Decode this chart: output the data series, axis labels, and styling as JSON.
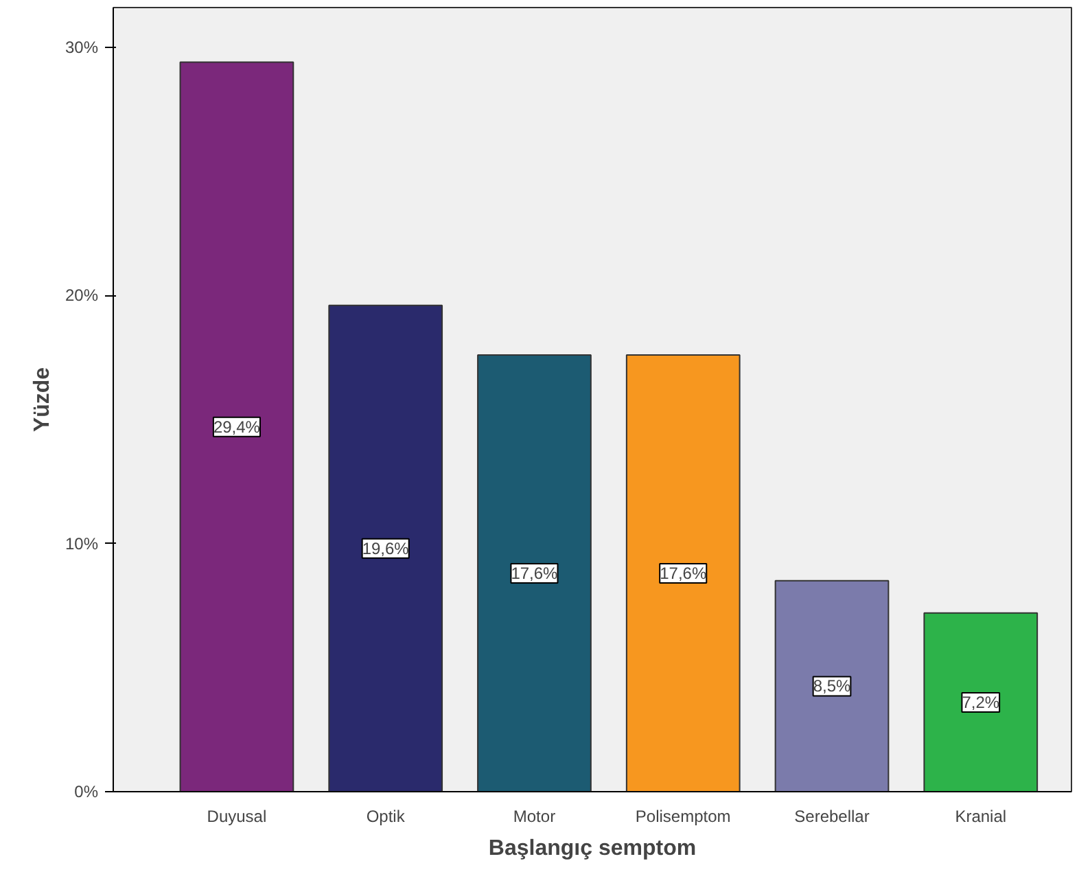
{
  "chart_data": {
    "type": "bar",
    "xlabel": "Başlangıç semptom",
    "ylabel": "Yüzde",
    "categories": [
      "Duyusal",
      "Optik",
      "Motor",
      "Polisemptom",
      "Serebellar",
      "Kranial"
    ],
    "values": [
      29.4,
      19.6,
      17.6,
      17.6,
      8.5,
      7.2
    ],
    "colors": [
      "#7b287b",
      "#2a2a6c",
      "#1c5b72",
      "#f7971f",
      "#7b7bab",
      "#2db34a"
    ],
    "value_labels": [
      "29,4%",
      "19,6%",
      "17,6%",
      "17,6%",
      "8,5%",
      "7,2%"
    ],
    "ylim": [
      0,
      31.6
    ],
    "yticks": [
      {
        "value": 0,
        "label": "0%"
      },
      {
        "value": 10,
        "label": "10%"
      },
      {
        "value": 20,
        "label": "20%"
      },
      {
        "value": 30,
        "label": "30%"
      }
    ],
    "grid": false
  }
}
